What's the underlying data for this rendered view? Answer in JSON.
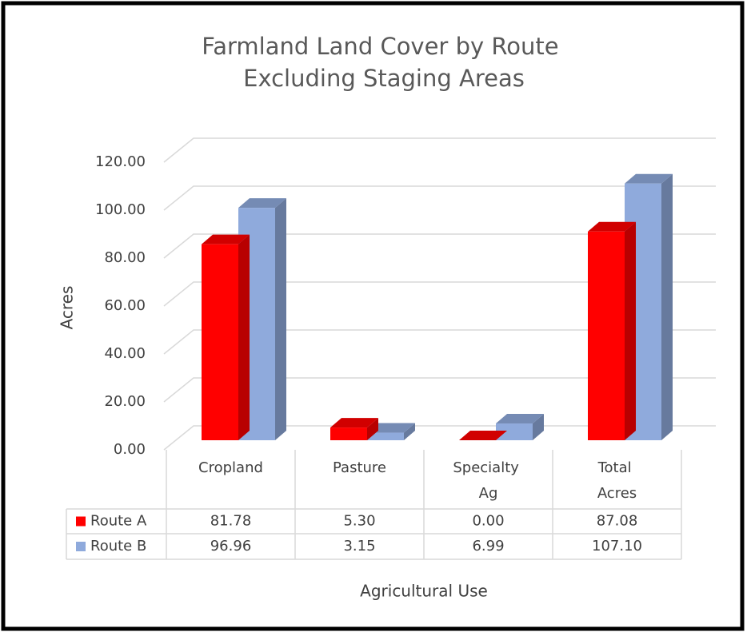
{
  "chart_data": {
    "type": "bar",
    "title": "Farmland Land Cover by Route Excluding Staging Areas",
    "x_label": "Agricultural Use",
    "y_label": "Acres",
    "categories": [
      "Cropland",
      "Pasture",
      "Specialty Ag",
      "Total Acres"
    ],
    "series": [
      {
        "name": "Route A",
        "color": "#ff0000",
        "values": [
          81.78,
          5.3,
          0,
          87.08
        ],
        "value_labels": [
          "81.78",
          "5.30",
          "0.00",
          "87.08"
        ]
      },
      {
        "name": "Route B",
        "color": "#8faadc",
        "values": [
          96.96,
          3.15,
          6.99,
          107.1
        ],
        "value_labels": [
          "96.96",
          "3.15",
          "6.99",
          "107.10"
        ]
      }
    ],
    "ylim": [
      0,
      120
    ],
    "yticks": [
      {
        "value": 0,
        "label": "0.00"
      },
      {
        "value": 20,
        "label": "20.00"
      },
      {
        "value": 40,
        "label": "40.00"
      },
      {
        "value": 60,
        "label": "60.00"
      },
      {
        "value": 80,
        "label": "80.00"
      },
      {
        "value": 100,
        "label": "100.00"
      },
      {
        "value": 120,
        "label": "120.00"
      }
    ],
    "grid": true
  }
}
